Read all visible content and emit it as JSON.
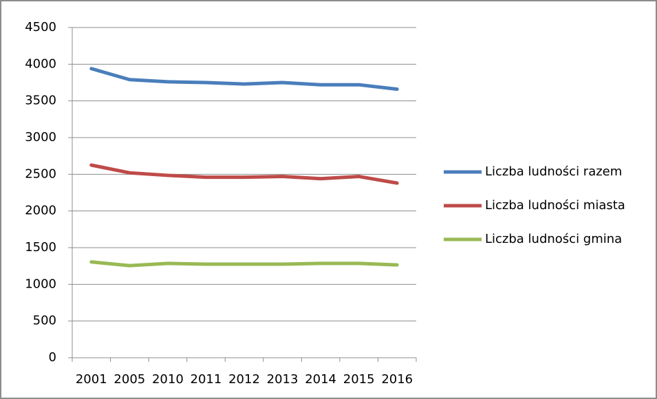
{
  "chart_data": {
    "type": "line",
    "categories": [
      "2001",
      "2005",
      "2010",
      "2011",
      "2012",
      "2013",
      "2014",
      "2015",
      "2016"
    ],
    "series": [
      {
        "name": "Liczba ludności razem",
        "color": "#4a7ebb",
        "values": [
          3940,
          3790,
          3760,
          3750,
          3730,
          3750,
          3720,
          3720,
          3660
        ]
      },
      {
        "name": "Liczba ludności miasta",
        "color": "#be4b48",
        "values": [
          2625,
          2520,
          2485,
          2460,
          2460,
          2470,
          2440,
          2470,
          2380
        ]
      },
      {
        "name": "Liczba ludności gmina",
        "color": "#98b954",
        "values": [
          1305,
          1255,
          1285,
          1275,
          1275,
          1275,
          1285,
          1285,
          1265
        ]
      }
    ],
    "ylim": [
      0,
      4500
    ],
    "yticks": [
      0,
      500,
      1000,
      1500,
      2000,
      2500,
      3000,
      3500,
      4000,
      4500
    ],
    "grid": true,
    "legend": "right"
  }
}
